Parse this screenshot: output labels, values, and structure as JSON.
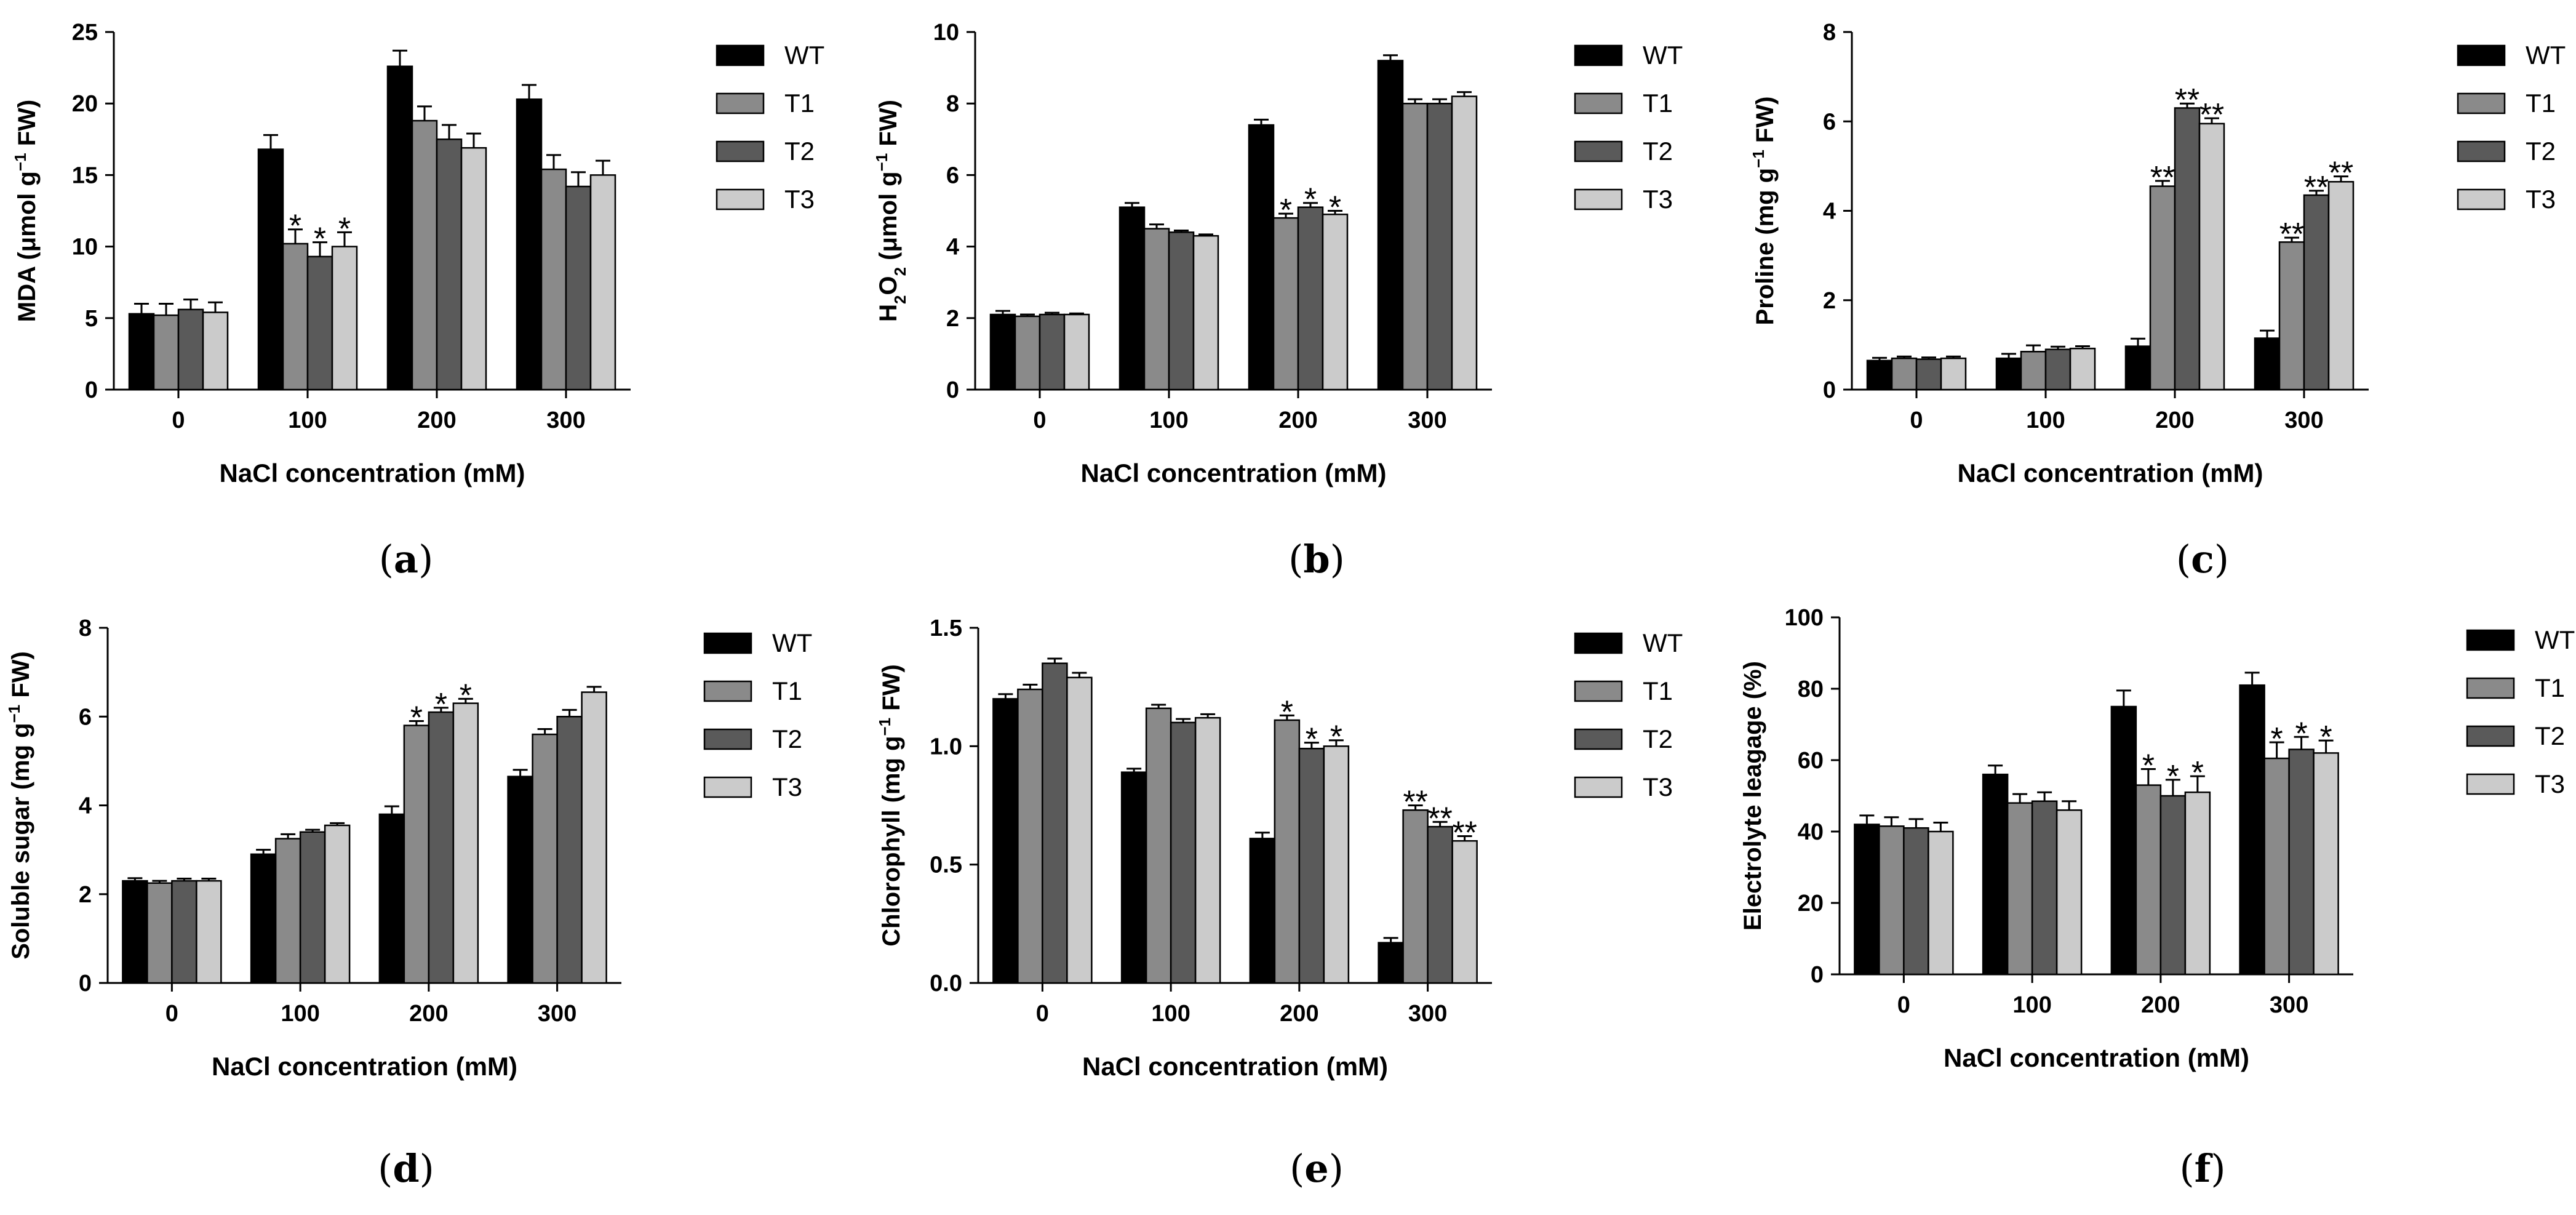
{
  "figure": {
    "xlabel": "NaCl concentration (mM)",
    "legend": [
      "WT",
      "T1",
      "T2",
      "T3"
    ]
  },
  "colors": {
    "WT": "#000000",
    "T1": "#8a8a8a",
    "T2": "#5a5a5a",
    "T3": "#cbcbcb",
    "axis": "#000000",
    "text": "#000000"
  },
  "chart_data": [
    {
      "panel": "(a)",
      "type": "bar",
      "ylabel": "MDA (μmol g−1 FW)",
      "xlabel": "NaCl concentration (mM)",
      "categories": [
        "0",
        "100",
        "200",
        "300"
      ],
      "ylim": [
        0,
        25
      ],
      "yticks": [
        "0",
        "5",
        "10",
        "15",
        "20",
        "25"
      ],
      "legend": "right",
      "series": [
        {
          "name": "WT",
          "values": [
            5.3,
            16.8,
            22.6,
            20.3
          ],
          "errors": [
            0.7,
            1.0,
            1.1,
            1.0
          ],
          "sig": [
            "",
            "",
            "",
            ""
          ]
        },
        {
          "name": "T1",
          "values": [
            5.2,
            10.2,
            18.8,
            15.4
          ],
          "errors": [
            0.8,
            1.0,
            1.0,
            1.0
          ],
          "sig": [
            "",
            "*",
            "",
            ""
          ]
        },
        {
          "name": "T2",
          "values": [
            5.6,
            9.3,
            17.5,
            14.2
          ],
          "errors": [
            0.7,
            1.0,
            1.0,
            1.0
          ],
          "sig": [
            "",
            "*",
            "",
            ""
          ]
        },
        {
          "name": "T3",
          "values": [
            5.4,
            10.0,
            16.9,
            15.0
          ],
          "errors": [
            0.7,
            1.0,
            1.0,
            1.0
          ],
          "sig": [
            "",
            "*",
            "",
            ""
          ]
        }
      ]
    },
    {
      "panel": "(b)",
      "type": "bar",
      "ylabel": "H2O2 (μmol g−1 FW)",
      "xlabel": "NaCl concentration (mM)",
      "categories": [
        "0",
        "100",
        "200",
        "300"
      ],
      "ylim": [
        0,
        10
      ],
      "yticks": [
        "0",
        "2",
        "4",
        "6",
        "8",
        "10"
      ],
      "legend": "right",
      "series": [
        {
          "name": "WT",
          "values": [
            2.1,
            5.1,
            7.4,
            9.2
          ],
          "errors": [
            0.1,
            0.12,
            0.15,
            0.15
          ],
          "sig": [
            "",
            "",
            "",
            ""
          ]
        },
        {
          "name": "T1",
          "values": [
            2.05,
            4.5,
            4.8,
            8.0
          ],
          "errors": [
            0.05,
            0.12,
            0.12,
            0.12
          ],
          "sig": [
            "",
            "",
            "*",
            ""
          ]
        },
        {
          "name": "T2",
          "values": [
            2.1,
            4.4,
            5.1,
            8.0
          ],
          "errors": [
            0.05,
            0.05,
            0.12,
            0.12
          ],
          "sig": [
            "",
            "",
            "*",
            ""
          ]
        },
        {
          "name": "T3",
          "values": [
            2.1,
            4.3,
            4.9,
            8.2
          ],
          "errors": [
            0.03,
            0.04,
            0.1,
            0.12
          ],
          "sig": [
            "",
            "",
            "*",
            ""
          ]
        }
      ]
    },
    {
      "panel": "(c)",
      "type": "bar",
      "ylabel": "Proline (mg g−1 FW)",
      "xlabel": "NaCl concentration (mM)",
      "categories": [
        "0",
        "100",
        "200",
        "300"
      ],
      "ylim": [
        0,
        8
      ],
      "yticks": [
        "0",
        "2",
        "4",
        "6",
        "8"
      ],
      "legend": "right",
      "series": [
        {
          "name": "WT",
          "values": [
            0.65,
            0.7,
            0.97,
            1.15
          ],
          "errors": [
            0.06,
            0.1,
            0.17,
            0.17
          ],
          "sig": [
            "",
            "",
            "",
            ""
          ]
        },
        {
          "name": "T1",
          "values": [
            0.7,
            0.85,
            4.55,
            3.3
          ],
          "errors": [
            0.04,
            0.14,
            0.12,
            0.1
          ],
          "sig": [
            "",
            "",
            "**",
            "**"
          ]
        },
        {
          "name": "T2",
          "values": [
            0.68,
            0.9,
            6.3,
            4.35
          ],
          "errors": [
            0.04,
            0.06,
            0.1,
            0.1
          ],
          "sig": [
            "",
            "",
            "**",
            "**"
          ]
        },
        {
          "name": "T3",
          "values": [
            0.7,
            0.92,
            5.95,
            4.65
          ],
          "errors": [
            0.04,
            0.05,
            0.12,
            0.12
          ],
          "sig": [
            "",
            "",
            "**",
            "**"
          ]
        }
      ]
    },
    {
      "panel": "(d)",
      "type": "bar",
      "ylabel": "Soluble sugar  (mg g−1 FW)",
      "xlabel": "NaCl concentration (mM)",
      "categories": [
        "0",
        "100",
        "200",
        "300"
      ],
      "ylim": [
        0,
        8
      ],
      "yticks": [
        "0",
        "2",
        "4",
        "6",
        "8"
      ],
      "legend": "right",
      "series": [
        {
          "name": "WT",
          "values": [
            2.3,
            2.9,
            3.8,
            4.65
          ],
          "errors": [
            0.06,
            0.1,
            0.18,
            0.15
          ],
          "sig": [
            "",
            "",
            "",
            ""
          ]
        },
        {
          "name": "T1",
          "values": [
            2.25,
            3.25,
            5.8,
            5.6
          ],
          "errors": [
            0.05,
            0.1,
            0.1,
            0.12
          ],
          "sig": [
            "",
            "",
            "*",
            ""
          ]
        },
        {
          "name": "T2",
          "values": [
            2.3,
            3.4,
            6.1,
            6.0
          ],
          "errors": [
            0.05,
            0.05,
            0.1,
            0.15
          ],
          "sig": [
            "",
            "",
            "*",
            ""
          ]
        },
        {
          "name": "T3",
          "values": [
            2.3,
            3.55,
            6.3,
            6.55
          ],
          "errors": [
            0.05,
            0.05,
            0.1,
            0.12
          ],
          "sig": [
            "",
            "",
            "*",
            ""
          ]
        }
      ]
    },
    {
      "panel": "(e)",
      "type": "bar",
      "ylabel": "Chlorophyll (mg g−1 FW)",
      "xlabel": "NaCl concentration (mM)",
      "categories": [
        "0",
        "100",
        "200",
        "300"
      ],
      "ylim": [
        0,
        1.5
      ],
      "yticks": [
        "0.0",
        "0.5",
        "1.0",
        "1.5"
      ],
      "legend": "right",
      "series": [
        {
          "name": "WT",
          "values": [
            1.2,
            0.89,
            0.61,
            0.17
          ],
          "errors": [
            0.02,
            0.015,
            0.025,
            0.02
          ],
          "sig": [
            "",
            "",
            "",
            ""
          ]
        },
        {
          "name": "T1",
          "values": [
            1.24,
            1.16,
            1.11,
            0.73
          ],
          "errors": [
            0.02,
            0.015,
            0.02,
            0.02
          ],
          "sig": [
            "",
            "",
            "*",
            "**"
          ]
        },
        {
          "name": "T2",
          "values": [
            1.35,
            1.1,
            0.99,
            0.66
          ],
          "errors": [
            0.02,
            0.015,
            0.025,
            0.02
          ],
          "sig": [
            "",
            "",
            "*",
            "**"
          ]
        },
        {
          "name": "T3",
          "values": [
            1.29,
            1.12,
            1.0,
            0.6
          ],
          "errors": [
            0.02,
            0.015,
            0.025,
            0.02
          ],
          "sig": [
            "",
            "",
            "*",
            "**"
          ]
        }
      ]
    },
    {
      "panel": "(f)",
      "type": "bar",
      "ylabel": "Electrolyte leagage  (%)",
      "xlabel": "NaCl concentration (mM)",
      "categories": [
        "0",
        "100",
        "200",
        "300"
      ],
      "ylim": [
        0,
        100
      ],
      "yticks": [
        "0",
        "20",
        "40",
        "60",
        "80",
        "100"
      ],
      "legend": "right",
      "series": [
        {
          "name": "WT",
          "values": [
            42,
            56,
            75,
            81
          ],
          "errors": [
            2.5,
            2.5,
            4.5,
            3.5
          ],
          "sig": [
            "",
            "",
            "",
            ""
          ]
        },
        {
          "name": "T1",
          "values": [
            41.5,
            48,
            53,
            60.5
          ],
          "errors": [
            2.5,
            2.5,
            4.5,
            4.5
          ],
          "sig": [
            "",
            "",
            "*",
            "*"
          ]
        },
        {
          "name": "T2",
          "values": [
            41,
            48.5,
            50,
            63
          ],
          "errors": [
            2.5,
            2.5,
            4.5,
            3.5
          ],
          "sig": [
            "",
            "",
            "*",
            "*"
          ]
        },
        {
          "name": "T3",
          "values": [
            40,
            46,
            51,
            62
          ],
          "errors": [
            2.5,
            2.5,
            4.5,
            3.5
          ],
          "sig": [
            "",
            "",
            "*",
            "*"
          ]
        }
      ]
    }
  ]
}
